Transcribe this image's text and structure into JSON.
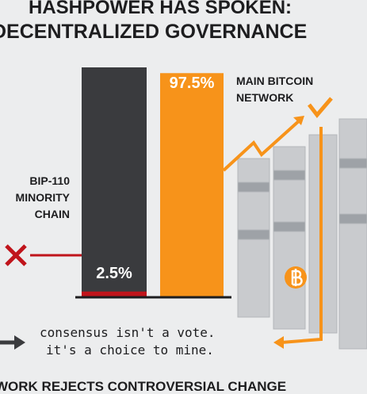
{
  "chart_data": {
    "type": "bar",
    "title": "HASHPOWER HAS SPOKEN:",
    "subtitle": "DECENTRALIZED GOVERNANCE",
    "categories": [
      "BIP-110 MINORITY CHAIN",
      "MAIN BITCOIN NETWORK"
    ],
    "values": [
      2.5,
      97.5
    ],
    "value_labels": [
      "2.5%",
      "97.5%"
    ],
    "colors": [
      "#c0141b",
      "#f7931a"
    ],
    "ylim": [
      0,
      100
    ],
    "annotations": [
      "consensus isn't a vote.",
      "it's a choice to mine."
    ],
    "footer": "WORK REJECTS CONTROVERSIAL CHANGE"
  }
}
